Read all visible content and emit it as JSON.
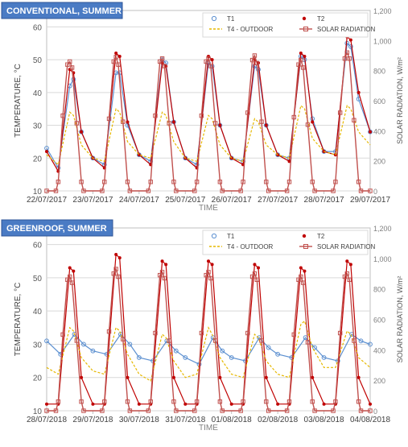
{
  "chart_data": [
    {
      "type": "line",
      "title": "CONVENTIONAL, SUMMER",
      "xlabel": "TIME",
      "ylabel": "TEMPERATURE, °C",
      "y2label": "SOLAR RADIATION, W/m²",
      "ylim": [
        10,
        65
      ],
      "y2lim": [
        0,
        1200
      ],
      "yticks": [
        "10",
        "20",
        "30",
        "40",
        "50",
        "60"
      ],
      "y2ticks": [
        "0",
        "200",
        "400",
        "600",
        "800",
        "1,000",
        "1,200"
      ],
      "xticks": [
        "22/07/2017",
        "23/07/2017",
        "24/07/2017",
        "25/07/2017",
        "26/07/2017",
        "27/07/2017",
        "28/07/2017",
        "29/07/2017"
      ],
      "grid": true,
      "legend_position": "top-right",
      "legend": [
        "T1",
        "T2",
        "T4 - OUTDOOR",
        "SOLAR RADIATION"
      ],
      "x_unit": "days from 22/07/2017 00:00",
      "series": [
        {
          "name": "T1",
          "axis": "left",
          "marker": "circle-open",
          "color": "#5b8fd0",
          "x": [
            0,
            0.25,
            0.5,
            0.58,
            0.75,
            1,
            1.25,
            1.5,
            1.58,
            1.75,
            2,
            2.25,
            2.5,
            2.58,
            2.75,
            3,
            3.25,
            3.5,
            3.58,
            3.75,
            4,
            4.25,
            4.5,
            4.58,
            4.75,
            5,
            5.25,
            5.5,
            5.58,
            5.75,
            6,
            6.25,
            6.5,
            6.58,
            6.75,
            7
          ],
          "values": [
            23,
            17,
            42,
            44,
            28,
            20,
            18,
            46,
            46,
            30,
            21,
            19,
            50,
            49,
            31,
            20,
            18,
            49,
            48,
            30,
            20,
            19,
            48,
            47,
            30,
            21,
            20,
            51,
            50,
            32,
            22,
            22,
            55,
            54,
            38,
            28
          ]
        },
        {
          "name": "T2",
          "axis": "left",
          "marker": "asterisk",
          "color": "#c00000",
          "x": [
            0,
            0.25,
            0.5,
            0.58,
            0.75,
            1,
            1.25,
            1.5,
            1.58,
            1.75,
            2,
            2.25,
            2.5,
            2.58,
            2.75,
            3,
            3.25,
            3.5,
            3.58,
            3.75,
            4,
            4.25,
            4.5,
            4.58,
            4.75,
            5,
            5.25,
            5.5,
            5.58,
            5.75,
            6,
            6.25,
            6.5,
            6.58,
            6.75,
            7
          ],
          "values": [
            22,
            16,
            47,
            46,
            28,
            20,
            17,
            52,
            51,
            31,
            21,
            18,
            49,
            48,
            31,
            20,
            17,
            51,
            50,
            30,
            20,
            18,
            50,
            49,
            30,
            21,
            19,
            52,
            51,
            31,
            22,
            21,
            57,
            56,
            40,
            28
          ]
        },
        {
          "name": "T4 - OUTDOOR",
          "axis": "left",
          "line": "dashed",
          "color": "#e6b800",
          "x": [
            0,
            0.25,
            0.5,
            0.58,
            0.75,
            1,
            1.25,
            1.5,
            1.58,
            1.75,
            2,
            2.25,
            2.5,
            2.58,
            2.75,
            3,
            3.25,
            3.5,
            3.58,
            3.75,
            4,
            4.25,
            4.5,
            4.58,
            4.75,
            5,
            5.25,
            5.5,
            5.58,
            5.75,
            6,
            6.25,
            6.5,
            6.58,
            6.75,
            7
          ],
          "values": [
            21,
            18,
            34,
            33,
            24,
            20,
            19,
            35,
            34,
            25,
            21,
            20,
            34,
            33,
            25,
            20,
            19,
            33,
            32,
            24,
            20,
            19,
            32,
            31,
            24,
            21,
            20,
            36,
            35,
            26,
            22,
            21,
            36,
            35,
            28,
            24
          ]
        },
        {
          "name": "SOLAR RADIATION",
          "axis": "right",
          "marker": "square-open",
          "color": "#c0504d",
          "x": [
            0,
            0.2,
            0.25,
            0.35,
            0.45,
            0.5,
            0.55,
            0.65,
            0.75,
            0.8,
            1.2,
            1.25,
            1.35,
            1.45,
            1.5,
            1.55,
            1.65,
            1.75,
            1.8,
            2.2,
            2.25,
            2.35,
            2.45,
            2.5,
            2.55,
            2.65,
            2.75,
            2.8,
            3.2,
            3.25,
            3.35,
            3.45,
            3.5,
            3.55,
            3.65,
            3.75,
            3.8,
            4.2,
            4.25,
            4.35,
            4.45,
            4.5,
            4.55,
            4.65,
            4.75,
            4.8,
            5.2,
            5.25,
            5.35,
            5.45,
            5.5,
            5.55,
            5.65,
            5.75,
            5.8,
            6.2,
            6.25,
            6.35,
            6.45,
            6.5,
            6.55,
            6.65,
            6.75,
            6.8,
            7
          ],
          "values": [
            0,
            0,
            60,
            500,
            840,
            860,
            820,
            450,
            60,
            0,
            0,
            60,
            480,
            860,
            890,
            840,
            460,
            60,
            0,
            0,
            60,
            500,
            860,
            880,
            830,
            450,
            60,
            0,
            0,
            60,
            500,
            860,
            880,
            830,
            450,
            60,
            0,
            0,
            60,
            520,
            870,
            900,
            850,
            460,
            60,
            0,
            0,
            60,
            490,
            840,
            870,
            820,
            440,
            60,
            0,
            0,
            60,
            520,
            880,
            920,
            880,
            470,
            60,
            0,
            0
          ]
        }
      ]
    },
    {
      "type": "line",
      "title": "GREENROOF, SUMMER",
      "xlabel": "TIME",
      "ylabel": "TEMPERATURE, °C",
      "y2label": "SOLAR RADIATION, W/m²",
      "ylim": [
        10,
        65
      ],
      "y2lim": [
        0,
        1200
      ],
      "yticks": [
        "10",
        "20",
        "30",
        "40",
        "50",
        "60"
      ],
      "y2ticks": [
        "0",
        "200",
        "400",
        "600",
        "800",
        "1,000",
        "1,200"
      ],
      "xticks": [
        "28/07/2018",
        "29/07/2018",
        "30/07/2018",
        "31/07/2018",
        "01/08/2018",
        "02/08/2018",
        "03/08/2018",
        "04/08/2018"
      ],
      "grid": true,
      "legend_position": "top-right",
      "legend": [
        "T1",
        "T2",
        "T4 - OUTDOOR",
        "SOLAR RADIATION"
      ],
      "x_unit": "days from 28/07/2018 00:00",
      "series": [
        {
          "name": "T1",
          "axis": "left",
          "marker": "circle-open",
          "color": "#5b8fd0",
          "x": [
            0,
            0.3,
            0.6,
            0.8,
            1,
            1.3,
            1.6,
            1.8,
            2,
            2.3,
            2.6,
            2.8,
            3,
            3.3,
            3.6,
            3.8,
            4,
            4.3,
            4.6,
            4.8,
            5,
            5.3,
            5.6,
            5.8,
            6,
            6.3,
            6.6,
            6.8,
            7
          ],
          "values": [
            31,
            27,
            33,
            30,
            28,
            27,
            33,
            30,
            26,
            25,
            31,
            28,
            26,
            24,
            32,
            28,
            26,
            25,
            32,
            29,
            27,
            26,
            32,
            29,
            26,
            25,
            33,
            31,
            30
          ]
        },
        {
          "name": "T2",
          "axis": "left",
          "marker": "asterisk",
          "color": "#c00000",
          "x": [
            0,
            0.25,
            0.5,
            0.58,
            0.75,
            1,
            1.25,
            1.5,
            1.58,
            1.75,
            2,
            2.25,
            2.5,
            2.58,
            2.75,
            3,
            3.25,
            3.5,
            3.58,
            3.75,
            4,
            4.25,
            4.5,
            4.58,
            4.75,
            5,
            5.25,
            5.5,
            5.58,
            5.75,
            6,
            6.25,
            6.5,
            6.58,
            6.75,
            7
          ],
          "values": [
            12,
            12,
            53,
            52,
            20,
            12,
            12,
            57,
            56,
            20,
            12,
            12,
            55,
            54,
            20,
            12,
            12,
            55,
            54,
            20,
            12,
            12,
            54,
            53,
            20,
            12,
            12,
            53,
            52,
            20,
            12,
            12,
            55,
            54,
            20,
            12
          ]
        },
        {
          "name": "T4 - OUTDOOR",
          "axis": "left",
          "line": "dashed",
          "color": "#e6b800",
          "x": [
            0,
            0.25,
            0.5,
            0.58,
            0.75,
            1,
            1.25,
            1.5,
            1.58,
            1.75,
            2,
            2.25,
            2.5,
            2.58,
            2.75,
            3,
            3.25,
            3.5,
            3.58,
            3.75,
            4,
            4.25,
            4.5,
            4.58,
            4.75,
            5,
            5.25,
            5.5,
            5.58,
            5.75,
            6,
            6.25,
            6.5,
            6.58,
            6.75,
            7
          ],
          "values": [
            23,
            21,
            35,
            34,
            26,
            22,
            21,
            35,
            34,
            27,
            21,
            19,
            33,
            32,
            25,
            20,
            21,
            35,
            33,
            26,
            21,
            20,
            33,
            32,
            25,
            21,
            20,
            36,
            37,
            29,
            23,
            23,
            34,
            33,
            26,
            23
          ]
        },
        {
          "name": "SOLAR RADIATION",
          "axis": "right",
          "marker": "square-open",
          "color": "#c0504d",
          "x": [
            0,
            0.2,
            0.25,
            0.35,
            0.45,
            0.5,
            0.55,
            0.65,
            0.75,
            0.8,
            1.2,
            1.25,
            1.35,
            1.45,
            1.5,
            1.55,
            1.65,
            1.75,
            1.8,
            2.2,
            2.25,
            2.35,
            2.45,
            2.5,
            2.55,
            2.65,
            2.75,
            2.8,
            3.2,
            3.25,
            3.35,
            3.45,
            3.5,
            3.55,
            3.65,
            3.75,
            3.8,
            4.2,
            4.25,
            4.35,
            4.45,
            4.5,
            4.55,
            4.65,
            4.75,
            4.8,
            5.2,
            5.25,
            5.35,
            5.45,
            5.5,
            5.55,
            5.65,
            5.75,
            5.8,
            6.2,
            6.25,
            6.35,
            6.45,
            6.5,
            6.55,
            6.65,
            6.75,
            6.8,
            7
          ],
          "values": [
            0,
            0,
            60,
            500,
            860,
            880,
            840,
            460,
            60,
            0,
            0,
            60,
            520,
            900,
            930,
            880,
            470,
            60,
            0,
            0,
            60,
            510,
            890,
            910,
            870,
            460,
            60,
            0,
            0,
            60,
            510,
            890,
            910,
            870,
            460,
            60,
            0,
            0,
            60,
            510,
            880,
            900,
            860,
            460,
            60,
            0,
            0,
            60,
            500,
            860,
            880,
            840,
            450,
            60,
            0,
            0,
            60,
            510,
            880,
            900,
            860,
            460,
            60,
            0,
            0
          ]
        }
      ]
    }
  ]
}
